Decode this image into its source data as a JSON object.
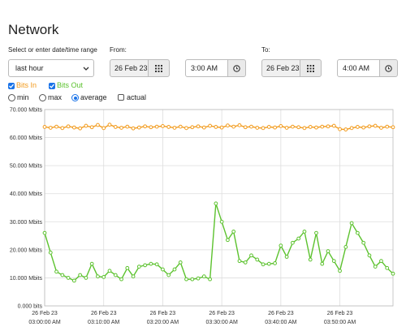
{
  "header": {
    "title": "Network"
  },
  "range": {
    "label": "Select or enter date/time range",
    "preset": "last hour",
    "from_label": "From:",
    "from_date": "26 Feb 23",
    "from_time": "3:00 AM",
    "to_label": "To:",
    "to_date": "26 Feb 23",
    "to_time": "4:00 AM"
  },
  "options": {
    "min": "min",
    "max": "max",
    "average": "average",
    "actual": "actual"
  },
  "chart_data": {
    "type": "line",
    "x": [
      0,
      1,
      2,
      3,
      4,
      5,
      6,
      7,
      8,
      9,
      10,
      11,
      12,
      13,
      14,
      15,
      16,
      17,
      18,
      19,
      20,
      21,
      22,
      23,
      24,
      25,
      26,
      27,
      28,
      29,
      30,
      31,
      32,
      33,
      34,
      35,
      36,
      37,
      38,
      39,
      40,
      41,
      42,
      43,
      44,
      45,
      46,
      47,
      48,
      49,
      50,
      51,
      52,
      53,
      54,
      55,
      56,
      57,
      58,
      59
    ],
    "series": [
      {
        "name": "Bits In",
        "color": "#f29b1d",
        "values": [
          63.8,
          63.5,
          63.9,
          63.4,
          64.0,
          63.6,
          63.3,
          64.2,
          63.7,
          64.5,
          63.4,
          64.6,
          63.8,
          63.5,
          63.9,
          63.3,
          63.6,
          64.0,
          63.7,
          63.9,
          64.1,
          63.8,
          63.5,
          63.9,
          63.4,
          63.7,
          64.0,
          63.6,
          64.2,
          63.8,
          63.6,
          64.3,
          63.9,
          64.4,
          63.7,
          63.9,
          63.5,
          63.4,
          63.8,
          63.6,
          64.1,
          63.5,
          63.9,
          63.7,
          63.4,
          63.8,
          63.6,
          63.9,
          64.0,
          64.2,
          63.0,
          62.9,
          63.4,
          63.8,
          63.6,
          64.0,
          64.2,
          63.5,
          63.9,
          63.7
        ]
      },
      {
        "name": "Bits Out",
        "color": "#5cc22e",
        "values": [
          26,
          19,
          12.2,
          11,
          10,
          9,
          11,
          10,
          15,
          10.5,
          10.3,
          12.5,
          11,
          9.5,
          13.5,
          10.5,
          14,
          14.5,
          15,
          14.8,
          13,
          11,
          13,
          15.5,
          9.5,
          9.5,
          9.8,
          10.5,
          9.5,
          36.5,
          30,
          23.5,
          26.5,
          16,
          15.5,
          18,
          16.5,
          14.8,
          15,
          15.2,
          21.5,
          17.5,
          22.5,
          24,
          26.5,
          16.5,
          26,
          15,
          19.5,
          16,
          12.5,
          21,
          29.5,
          26,
          22.5,
          18,
          14,
          16,
          13.5,
          11.5
        ]
      }
    ],
    "xlim": [
      0,
      59
    ],
    "xticks": [
      {
        "value": 0,
        "date": "26 Feb 23",
        "label": "03:00:00 AM"
      },
      {
        "value": 10,
        "date": "26 Feb 23",
        "label": "03:10:00 AM"
      },
      {
        "value": 20,
        "date": "26 Feb 23",
        "label": "03:20:00 AM"
      },
      {
        "value": 30,
        "date": "26 Feb 23",
        "label": "03:30:00 AM"
      },
      {
        "value": 40,
        "date": "26 Feb 23",
        "label": "03:40:00 AM"
      },
      {
        "value": 50,
        "date": "26 Feb 23",
        "label": "03:50:00 AM"
      }
    ],
    "ylim": [
      0,
      70
    ],
    "yticks": [
      {
        "value": 0,
        "label": "0.000 bits"
      },
      {
        "value": 10,
        "label": "10.000 Mbits"
      },
      {
        "value": 20,
        "label": "20.000 Mbits"
      },
      {
        "value": 30,
        "label": "30.000 Mbits"
      },
      {
        "value": 40,
        "label": "40.000 Mbits"
      },
      {
        "value": 50,
        "label": "50.000 Mbits"
      },
      {
        "value": 60,
        "label": "60.000 Mbits"
      },
      {
        "value": 70,
        "label": "70.000 Mbits"
      }
    ],
    "grid": true
  }
}
